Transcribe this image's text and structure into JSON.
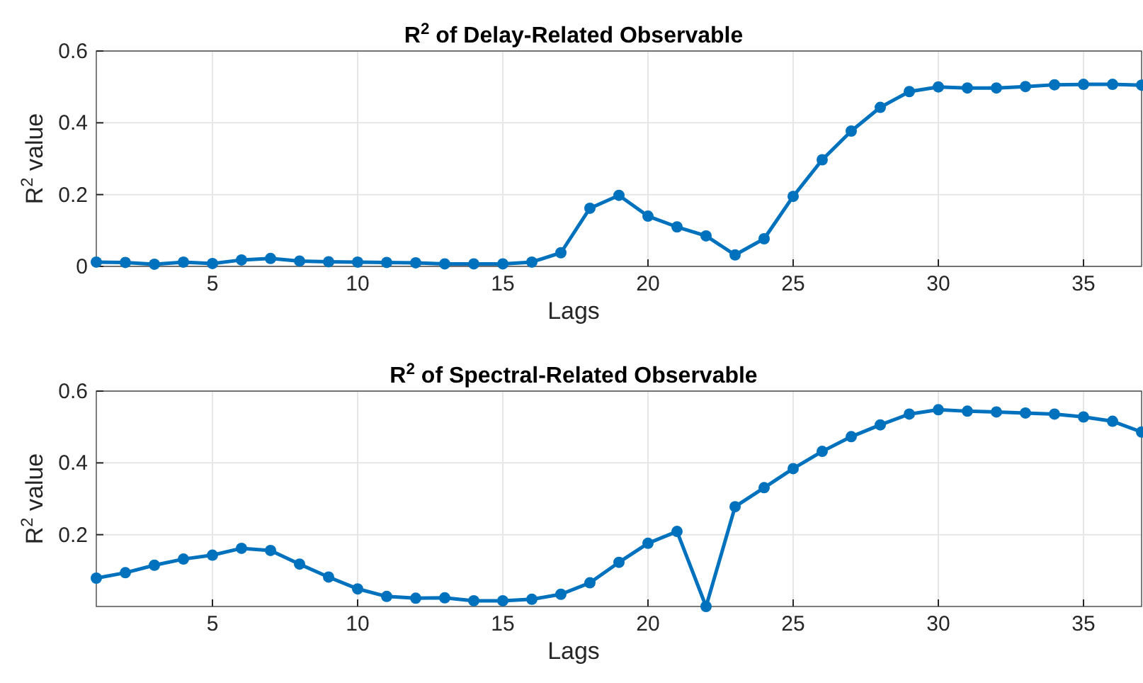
{
  "chart_data": [
    {
      "type": "line",
      "title": "R$^{2}$ of Delay-Related Observable",
      "xlabel": "Lags",
      "ylabel": "R$^{2}$ value",
      "x": [
        1,
        2,
        3,
        4,
        5,
        6,
        7,
        8,
        9,
        10,
        11,
        12,
        13,
        14,
        15,
        16,
        17,
        18,
        19,
        20,
        21,
        22,
        23,
        24,
        25,
        26,
        27,
        28,
        29,
        30,
        31,
        32,
        33,
        34,
        35,
        36,
        37
      ],
      "series": [
        {
          "color": "#0072bd",
          "values": [
            0.012,
            0.011,
            0.006,
            0.012,
            0.008,
            0.018,
            0.022,
            0.015,
            0.013,
            0.012,
            0.011,
            0.01,
            0.007,
            0.007,
            0.007,
            0.012,
            0.038,
            0.162,
            0.198,
            0.14,
            0.11,
            0.085,
            0.032,
            0.077,
            0.195,
            0.297,
            0.377,
            0.443,
            0.487,
            0.5,
            0.497,
            0.497,
            0.501,
            0.506,
            0.507,
            0.507,
            0.505
          ]
        }
      ],
      "xlim": [
        1,
        37
      ],
      "xticks": [
        5,
        10,
        15,
        20,
        25,
        30,
        35
      ],
      "ylim": [
        0,
        0.6
      ],
      "yticks": [
        0,
        0.2,
        0.4,
        0.6
      ],
      "grid": true,
      "marker": "circle",
      "line_style": "solid"
    },
    {
      "type": "line",
      "title": "R$^{2}$ of Spectral-Related Observable",
      "xlabel": "Lags",
      "ylabel": "R$^{2}$ value",
      "x": [
        1,
        2,
        3,
        4,
        5,
        6,
        7,
        8,
        9,
        10,
        11,
        12,
        13,
        14,
        15,
        16,
        17,
        18,
        19,
        20,
        21,
        22,
        23,
        24,
        25,
        26,
        27,
        28,
        29,
        30,
        31,
        32,
        33,
        34,
        35,
        36,
        37
      ],
      "series": [
        {
          "color": "#0072bd",
          "values": [
            0.079,
            0.094,
            0.115,
            0.132,
            0.143,
            0.162,
            0.156,
            0.118,
            0.082,
            0.049,
            0.028,
            0.023,
            0.024,
            0.016,
            0.016,
            0.02,
            0.034,
            0.066,
            0.123,
            0.176,
            0.209,
            0.0,
            0.278,
            0.331,
            0.384,
            0.432,
            0.473,
            0.506,
            0.536,
            0.548,
            0.544,
            0.542,
            0.539,
            0.536,
            0.528,
            0.516,
            0.486
          ]
        }
      ],
      "xlim": [
        1,
        37
      ],
      "xticks": [
        5,
        10,
        15,
        20,
        25,
        30,
        35
      ],
      "ylim": [
        0,
        0.6
      ],
      "yticks": [
        0.2,
        0.4,
        0.6
      ],
      "grid": true,
      "marker": "circle",
      "line_style": "solid"
    }
  ]
}
